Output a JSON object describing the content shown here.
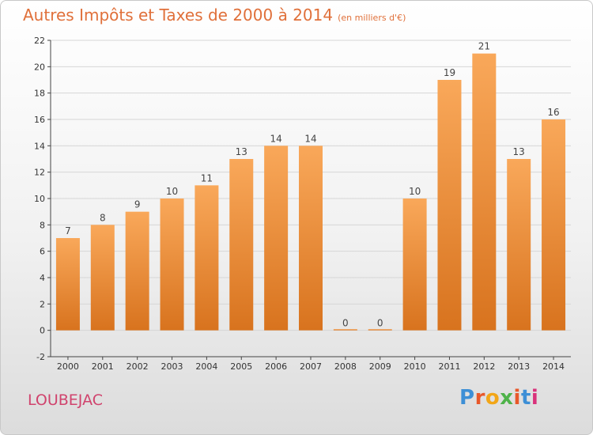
{
  "header": {
    "title": "Autres Impôts et Taxes de 2000 à 2014",
    "subtitle": "(en milliers d'€)"
  },
  "commune": "LOUBEJAC",
  "logo": {
    "text": "Proxiti",
    "letter_colors": [
      "#3d8fd6",
      "#e8582a",
      "#f2a618",
      "#4fb34a",
      "#e8582a",
      "#3d8fd6",
      "#d9327b"
    ]
  },
  "colors": {
    "bar_top": "#f9a85a",
    "bar_bottom": "#d8731e",
    "axis": "#444444",
    "grid": "#d6d6d6"
  },
  "chart_data": {
    "type": "bar",
    "categories": [
      "2000",
      "2001",
      "2002",
      "2003",
      "2004",
      "2005",
      "2006",
      "2007",
      "2008",
      "2009",
      "2010",
      "2011",
      "2012",
      "2013",
      "2014"
    ],
    "values": [
      7,
      8,
      9,
      10,
      11,
      13,
      14,
      14,
      0,
      0,
      10,
      19,
      21,
      13,
      16
    ],
    "data_labels": [
      "7",
      "8",
      "9",
      "10",
      "11",
      "13",
      "14",
      "14",
      "0",
      "0",
      "10",
      "19",
      "21",
      "13",
      "16"
    ],
    "yticks": [
      -2,
      0,
      2,
      4,
      6,
      8,
      10,
      12,
      14,
      16,
      18,
      20,
      22
    ],
    "ylim": [
      -2,
      22
    ],
    "grid": true,
    "legend": "none"
  }
}
